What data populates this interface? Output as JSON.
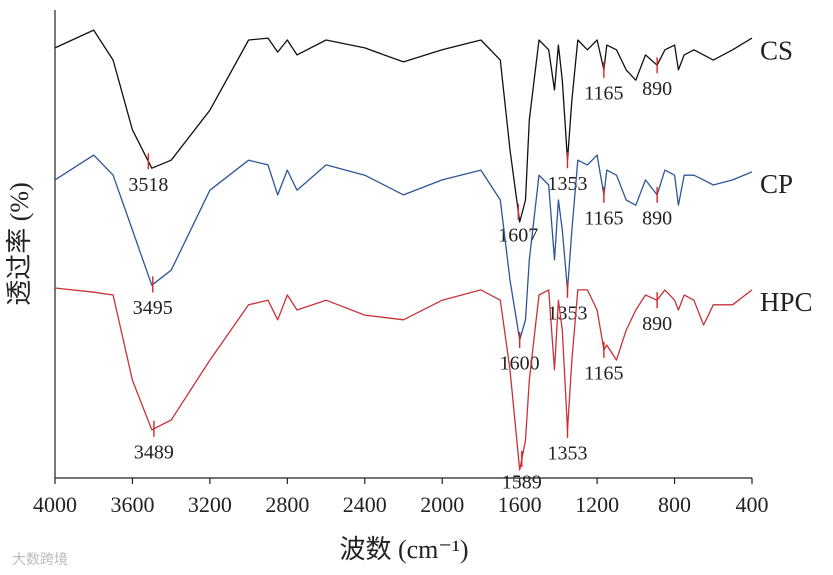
{
  "chart_data": {
    "type": "line",
    "xlabel": "波数 (cm⁻¹)",
    "ylabel": "透过率 (%)",
    "watermark": "大数跨境",
    "xlim": [
      4000,
      400
    ],
    "xticks": [
      4000,
      3600,
      3200,
      2800,
      2400,
      2000,
      1600,
      1200,
      800,
      400
    ],
    "ylim": [
      0,
      100
    ],
    "x": [
      4000,
      3800,
      3700,
      3600,
      3500,
      3400,
      3200,
      3000,
      2900,
      2850,
      2800,
      2750,
      2600,
      2400,
      2200,
      2000,
      1800,
      1700,
      1650,
      1600,
      1570,
      1550,
      1500,
      1450,
      1420,
      1400,
      1380,
      1353,
      1330,
      1300,
      1250,
      1200,
      1165,
      1150,
      1100,
      1050,
      1000,
      950,
      890,
      850,
      800,
      780,
      750,
      700,
      650,
      600,
      500,
      400
    ],
    "series": [
      {
        "name": "CS",
        "color": "#111111",
        "peaks": [
          3518,
          1607,
          1353,
          1165,
          890
        ],
        "values": [
          91.9,
          95.7,
          89.3,
          74.4,
          66.2,
          67.9,
          78.6,
          93.6,
          94.0,
          91.0,
          93.6,
          90.4,
          93.6,
          91.9,
          88.9,
          91.5,
          93.6,
          89.3,
          70.1,
          54.7,
          59.4,
          76.5,
          93.6,
          91.5,
          82.9,
          92.5,
          85.0,
          67.9,
          80.8,
          93.6,
          91.5,
          93.6,
          87.2,
          92.5,
          91.5,
          87.2,
          85.0,
          90.4,
          88.2,
          91.5,
          92.5,
          87.2,
          90.4,
          91.5,
          90.4,
          89.3,
          91.5,
          94.0
        ]
      },
      {
        "name": "CP",
        "color": "#2f5597",
        "peaks": [
          3495,
          1600,
          1353,
          1165,
          890
        ],
        "values": [
          63.7,
          69.0,
          64.7,
          53.0,
          41.2,
          44.4,
          61.5,
          67.9,
          66.9,
          60.5,
          65.8,
          61.5,
          66.9,
          64.7,
          60.5,
          63.7,
          65.8,
          59.4,
          42.3,
          29.5,
          33.8,
          46.6,
          64.7,
          62.6,
          46.6,
          59.4,
          53.0,
          40.2,
          53.0,
          67.9,
          66.9,
          69.0,
          60.5,
          65.8,
          64.7,
          59.4,
          58.3,
          63.7,
          60.5,
          65.8,
          64.7,
          58.3,
          64.7,
          64.7,
          63.7,
          62.6,
          63.7,
          65.4
        ]
      },
      {
        "name": "HPC",
        "color": "#c8323a",
        "peaks": [
          3489,
          1589,
          1353,
          1165,
          890
        ],
        "values": [
          40.6,
          39.7,
          39.1,
          20.9,
          10.3,
          12.4,
          25.2,
          37.0,
          38.0,
          33.8,
          39.1,
          35.9,
          38.0,
          34.8,
          33.8,
          38.0,
          40.2,
          38.0,
          23.1,
          1.7,
          8.1,
          20.9,
          39.1,
          40.2,
          23.1,
          38.0,
          31.6,
          10.3,
          25.2,
          40.2,
          40.2,
          35.9,
          27.4,
          28.4,
          25.2,
          31.6,
          35.9,
          39.1,
          38.0,
          40.2,
          38.0,
          35.9,
          39.1,
          38.0,
          32.7,
          37.0,
          37.0,
          40.2
        ]
      }
    ]
  }
}
